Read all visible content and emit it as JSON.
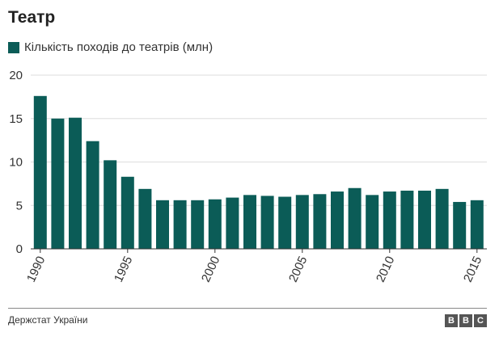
{
  "header": {
    "title": "Театр"
  },
  "legend": {
    "label": "Кількість походів до театрів (млн)"
  },
  "colors": {
    "bar": "#0b5c57",
    "grid": "#dddddd",
    "axis": "#333333"
  },
  "chart_data": {
    "type": "bar",
    "title": "Театр",
    "xlabel": "",
    "ylabel": "",
    "ylim": [
      0,
      20
    ],
    "yticks": [
      0,
      5,
      10,
      15,
      20
    ],
    "xtick_labels": [
      "1990",
      "1995",
      "2000",
      "2005",
      "2010",
      "2015"
    ],
    "grid": true,
    "legend_position": "top-left",
    "series": [
      {
        "name": "Кількість походів до театрів (млн)",
        "categories": [
          1990,
          1991,
          1992,
          1993,
          1994,
          1995,
          1996,
          1997,
          1998,
          1999,
          2000,
          2001,
          2002,
          2003,
          2004,
          2005,
          2006,
          2007,
          2008,
          2009,
          2010,
          2011,
          2012,
          2013,
          2014,
          2015
        ],
        "values": [
          17.6,
          15.0,
          15.1,
          12.4,
          10.2,
          8.3,
          6.9,
          5.6,
          5.6,
          5.6,
          5.7,
          5.9,
          6.2,
          6.1,
          6.0,
          6.2,
          6.3,
          6.6,
          7.0,
          6.2,
          6.6,
          6.7,
          6.7,
          6.9,
          5.4,
          5.6
        ]
      }
    ]
  },
  "footer": {
    "source": "Держстат України",
    "logo_letters": [
      "B",
      "B",
      "C"
    ]
  }
}
